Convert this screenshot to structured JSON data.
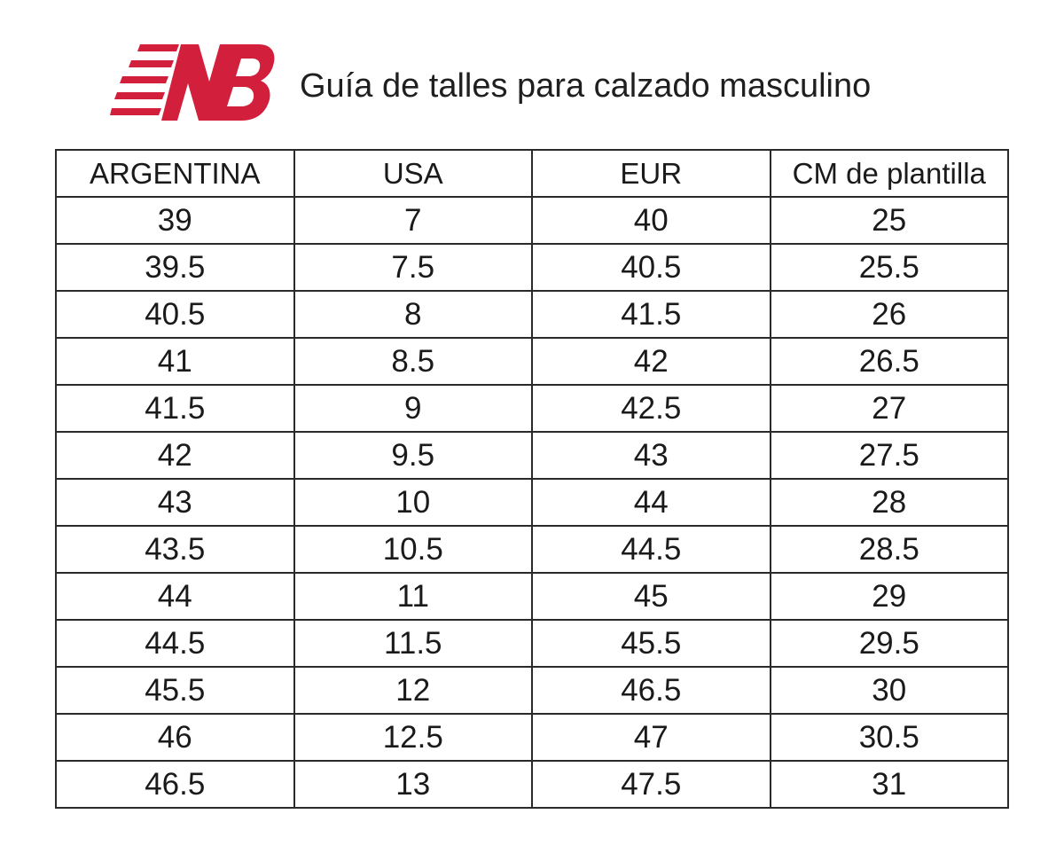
{
  "header": {
    "logo_icon": "new-balance-nb-logo",
    "logo_color": "#d11f3c",
    "title": "Guía de talles para calzado masculino"
  },
  "table": {
    "columns": [
      "ARGENTINA",
      "USA",
      "EUR",
      "CM de plantilla"
    ],
    "rows": [
      [
        "39",
        "7",
        "40",
        "25"
      ],
      [
        "39.5",
        "7.5",
        "40.5",
        "25.5"
      ],
      [
        "40.5",
        "8",
        "41.5",
        "26"
      ],
      [
        "41",
        "8.5",
        "42",
        "26.5"
      ],
      [
        "41.5",
        "9",
        "42.5",
        "27"
      ],
      [
        "42",
        "9.5",
        "43",
        "27.5"
      ],
      [
        "43",
        "10",
        "44",
        "28"
      ],
      [
        "43.5",
        "10.5",
        "44.5",
        "28.5"
      ],
      [
        "44",
        "11",
        "45",
        "29"
      ],
      [
        "44.5",
        "11.5",
        "45.5",
        "29.5"
      ],
      [
        "45.5",
        "12",
        "46.5",
        "30"
      ],
      [
        "46",
        "12.5",
        "47",
        "30.5"
      ],
      [
        "46.5",
        "13",
        "47.5",
        "31"
      ]
    ]
  }
}
